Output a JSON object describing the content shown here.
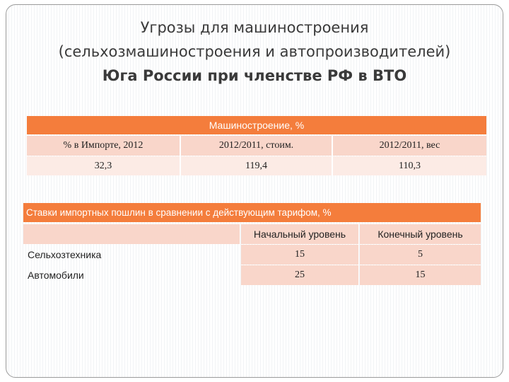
{
  "title": {
    "line1": "Угрозы для машиностроения",
    "line2": "(сельхозмашиностроения и автопроизводителей)",
    "line3": "Юга России при членстве РФ в ВТО"
  },
  "table1": {
    "header": "Машиностроение, %",
    "columns": [
      "% в Импорте, 2012",
      "2012/2011, стоим.",
      "2012/2011, вес"
    ],
    "values": [
      "32,3",
      "119,4",
      "110,3"
    ]
  },
  "table2": {
    "header": "Ставки импортных пошлин в сравнении с действующим тарифом, %",
    "columns": [
      "",
      "Начальный уровень",
      "Конечный уровень"
    ],
    "rows": [
      {
        "label": "Сельхозтехника",
        "initial": "15",
        "final": "5"
      },
      {
        "label": "Автомобили",
        "initial": "25",
        "final": "15"
      }
    ]
  },
  "colors": {
    "accent": "#f47d3c",
    "row": "#f9d6ca",
    "row_alt": "#fcebe5"
  }
}
